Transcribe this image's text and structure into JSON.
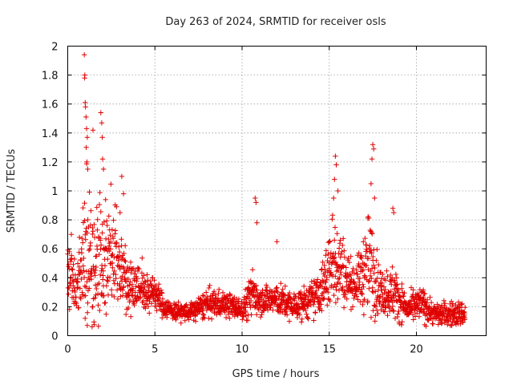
{
  "chart_data": {
    "type": "scatter",
    "title": "Day 263 of 2024, SRMTID for receiver osls",
    "xlabel": "GPS time / hours",
    "ylabel": "SRMTID / TECUs",
    "xlim": [
      0,
      24
    ],
    "ylim": [
      0,
      2
    ],
    "xticks": [
      0,
      5,
      10,
      15,
      20
    ],
    "yticks": [
      0,
      0.2,
      0.4,
      0.6,
      0.8,
      1,
      1.2,
      1.4,
      1.6,
      1.8,
      2
    ],
    "xtick_labels": [
      "0",
      "5",
      "10",
      "15",
      "20"
    ],
    "ytick_labels": [
      "0",
      "0.2",
      "0.4",
      "0.6",
      "0.8",
      "1",
      "1.2",
      "1.4",
      "1.6",
      "1.8",
      "2"
    ],
    "grid": true,
    "marker": "+",
    "color": "#e00000",
    "series_profile": [
      {
        "t": 0.0,
        "mean": 0.45,
        "spread": 0.2
      },
      {
        "t": 0.5,
        "mean": 0.32,
        "spread": 0.18
      },
      {
        "t": 1.0,
        "mean": 0.6,
        "spread": 0.45
      },
      {
        "t": 1.5,
        "mean": 0.55,
        "spread": 0.4
      },
      {
        "t": 2.0,
        "mean": 0.5,
        "spread": 0.35
      },
      {
        "t": 2.5,
        "mean": 0.6,
        "spread": 0.3
      },
      {
        "t": 3.0,
        "mean": 0.5,
        "spread": 0.25
      },
      {
        "t": 3.5,
        "mean": 0.35,
        "spread": 0.15
      },
      {
        "t": 4.0,
        "mean": 0.35,
        "spread": 0.15
      },
      {
        "t": 4.5,
        "mean": 0.3,
        "spread": 0.12
      },
      {
        "t": 5.0,
        "mean": 0.3,
        "spread": 0.1
      },
      {
        "t": 5.5,
        "mean": 0.2,
        "spread": 0.06
      },
      {
        "t": 6.0,
        "mean": 0.17,
        "spread": 0.05
      },
      {
        "t": 7.0,
        "mean": 0.16,
        "spread": 0.05
      },
      {
        "t": 8.0,
        "mean": 0.22,
        "spread": 0.08
      },
      {
        "t": 9.0,
        "mean": 0.22,
        "spread": 0.07
      },
      {
        "t": 10.0,
        "mean": 0.18,
        "spread": 0.06
      },
      {
        "t": 10.7,
        "mean": 0.3,
        "spread": 0.15
      },
      {
        "t": 11.0,
        "mean": 0.25,
        "spread": 0.08
      },
      {
        "t": 12.0,
        "mean": 0.25,
        "spread": 0.09
      },
      {
        "t": 13.0,
        "mean": 0.2,
        "spread": 0.08
      },
      {
        "t": 14.0,
        "mean": 0.25,
        "spread": 0.1
      },
      {
        "t": 14.5,
        "mean": 0.3,
        "spread": 0.12
      },
      {
        "t": 15.3,
        "mean": 0.55,
        "spread": 0.3
      },
      {
        "t": 16.0,
        "mean": 0.4,
        "spread": 0.15
      },
      {
        "t": 16.5,
        "mean": 0.35,
        "spread": 0.1
      },
      {
        "t": 17.3,
        "mean": 0.5,
        "spread": 0.3
      },
      {
        "t": 18.0,
        "mean": 0.3,
        "spread": 0.12
      },
      {
        "t": 18.7,
        "mean": 0.3,
        "spread": 0.15
      },
      {
        "t": 19.5,
        "mean": 0.18,
        "spread": 0.07
      },
      {
        "t": 20.3,
        "mean": 0.22,
        "spread": 0.1
      },
      {
        "t": 21.0,
        "mean": 0.15,
        "spread": 0.06
      },
      {
        "t": 22.0,
        "mean": 0.15,
        "spread": 0.07
      },
      {
        "t": 22.8,
        "mean": 0.15,
        "spread": 0.07
      }
    ],
    "spikes": [
      {
        "x": 0.95,
        "y": 1.94
      },
      {
        "x": 0.98,
        "y": 1.8
      },
      {
        "x": 0.97,
        "y": 1.78
      },
      {
        "x": 1.0,
        "y": 1.61
      },
      {
        "x": 1.02,
        "y": 1.58
      },
      {
        "x": 1.05,
        "y": 1.51
      },
      {
        "x": 1.08,
        "y": 1.43
      },
      {
        "x": 1.12,
        "y": 1.37
      },
      {
        "x": 1.06,
        "y": 1.3
      },
      {
        "x": 1.1,
        "y": 1.2
      },
      {
        "x": 1.15,
        "y": 1.15
      },
      {
        "x": 1.45,
        "y": 1.42
      },
      {
        "x": 1.9,
        "y": 1.54
      },
      {
        "x": 1.95,
        "y": 1.47
      },
      {
        "x": 1.98,
        "y": 1.37
      },
      {
        "x": 2.0,
        "y": 1.22
      },
      {
        "x": 2.05,
        "y": 1.15
      },
      {
        "x": 3.1,
        "y": 1.1
      },
      {
        "x": 3.2,
        "y": 0.98
      },
      {
        "x": 10.75,
        "y": 0.95
      },
      {
        "x": 10.8,
        "y": 0.92
      },
      {
        "x": 10.85,
        "y": 0.78
      },
      {
        "x": 15.35,
        "y": 1.24
      },
      {
        "x": 15.4,
        "y": 1.18
      },
      {
        "x": 15.3,
        "y": 1.08
      },
      {
        "x": 15.5,
        "y": 1.0
      },
      {
        "x": 15.25,
        "y": 0.95
      },
      {
        "x": 17.5,
        "y": 1.32
      },
      {
        "x": 17.55,
        "y": 1.29
      },
      {
        "x": 17.45,
        "y": 1.22
      },
      {
        "x": 17.4,
        "y": 1.05
      },
      {
        "x": 17.6,
        "y": 0.95
      },
      {
        "x": 18.65,
        "y": 0.88
      },
      {
        "x": 18.7,
        "y": 0.85
      },
      {
        "x": 12.0,
        "y": 0.65
      },
      {
        "x": 3.0,
        "y": 0.85
      }
    ],
    "points_per_hour": 85
  }
}
